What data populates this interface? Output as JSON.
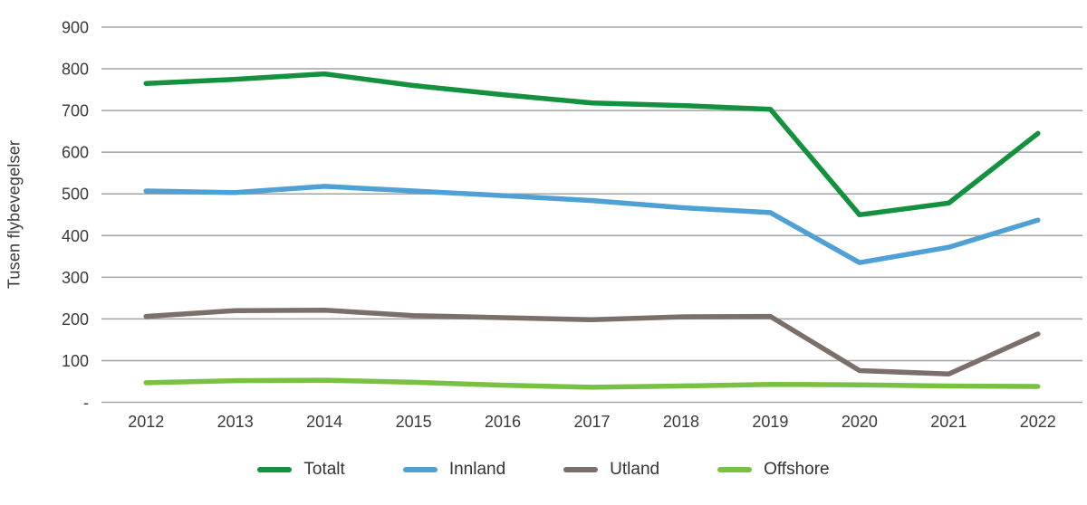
{
  "chart_data": {
    "type": "line",
    "title": "",
    "xlabel": "",
    "ylabel": "Tusen flybevegelser",
    "categories": [
      "2012",
      "2013",
      "2014",
      "2015",
      "2016",
      "2017",
      "2018",
      "2019",
      "2020",
      "2021",
      "2022"
    ],
    "series": [
      {
        "name": "Totalt",
        "color": "#14913f",
        "values": [
          765,
          775,
          788,
          760,
          738,
          718,
          712,
          703,
          450,
          478,
          645
        ]
      },
      {
        "name": "Innland",
        "color": "#4fa0d5",
        "values": [
          507,
          503,
          518,
          507,
          496,
          484,
          467,
          455,
          335,
          372,
          437
        ]
      },
      {
        "name": "Utland",
        "color": "#7b6f69",
        "values": [
          206,
          220,
          221,
          208,
          203,
          198,
          205,
          206,
          76,
          68,
          164
        ]
      },
      {
        "name": "Offshore",
        "color": "#79c143",
        "values": [
          47,
          52,
          53,
          48,
          41,
          36,
          39,
          43,
          42,
          39,
          38
        ]
      }
    ],
    "y_axis": {
      "min": 0,
      "max": 900,
      "step": 100,
      "tick_labels": [
        "-",
        "100",
        "200",
        "300",
        "400",
        "500",
        "600",
        "700",
        "800",
        "900"
      ]
    },
    "grid": true,
    "legend_position": "bottom",
    "style": {
      "gridline_color": "#a3a3a3",
      "text_color": "#3a3a3a",
      "line_width": 5.5
    }
  }
}
